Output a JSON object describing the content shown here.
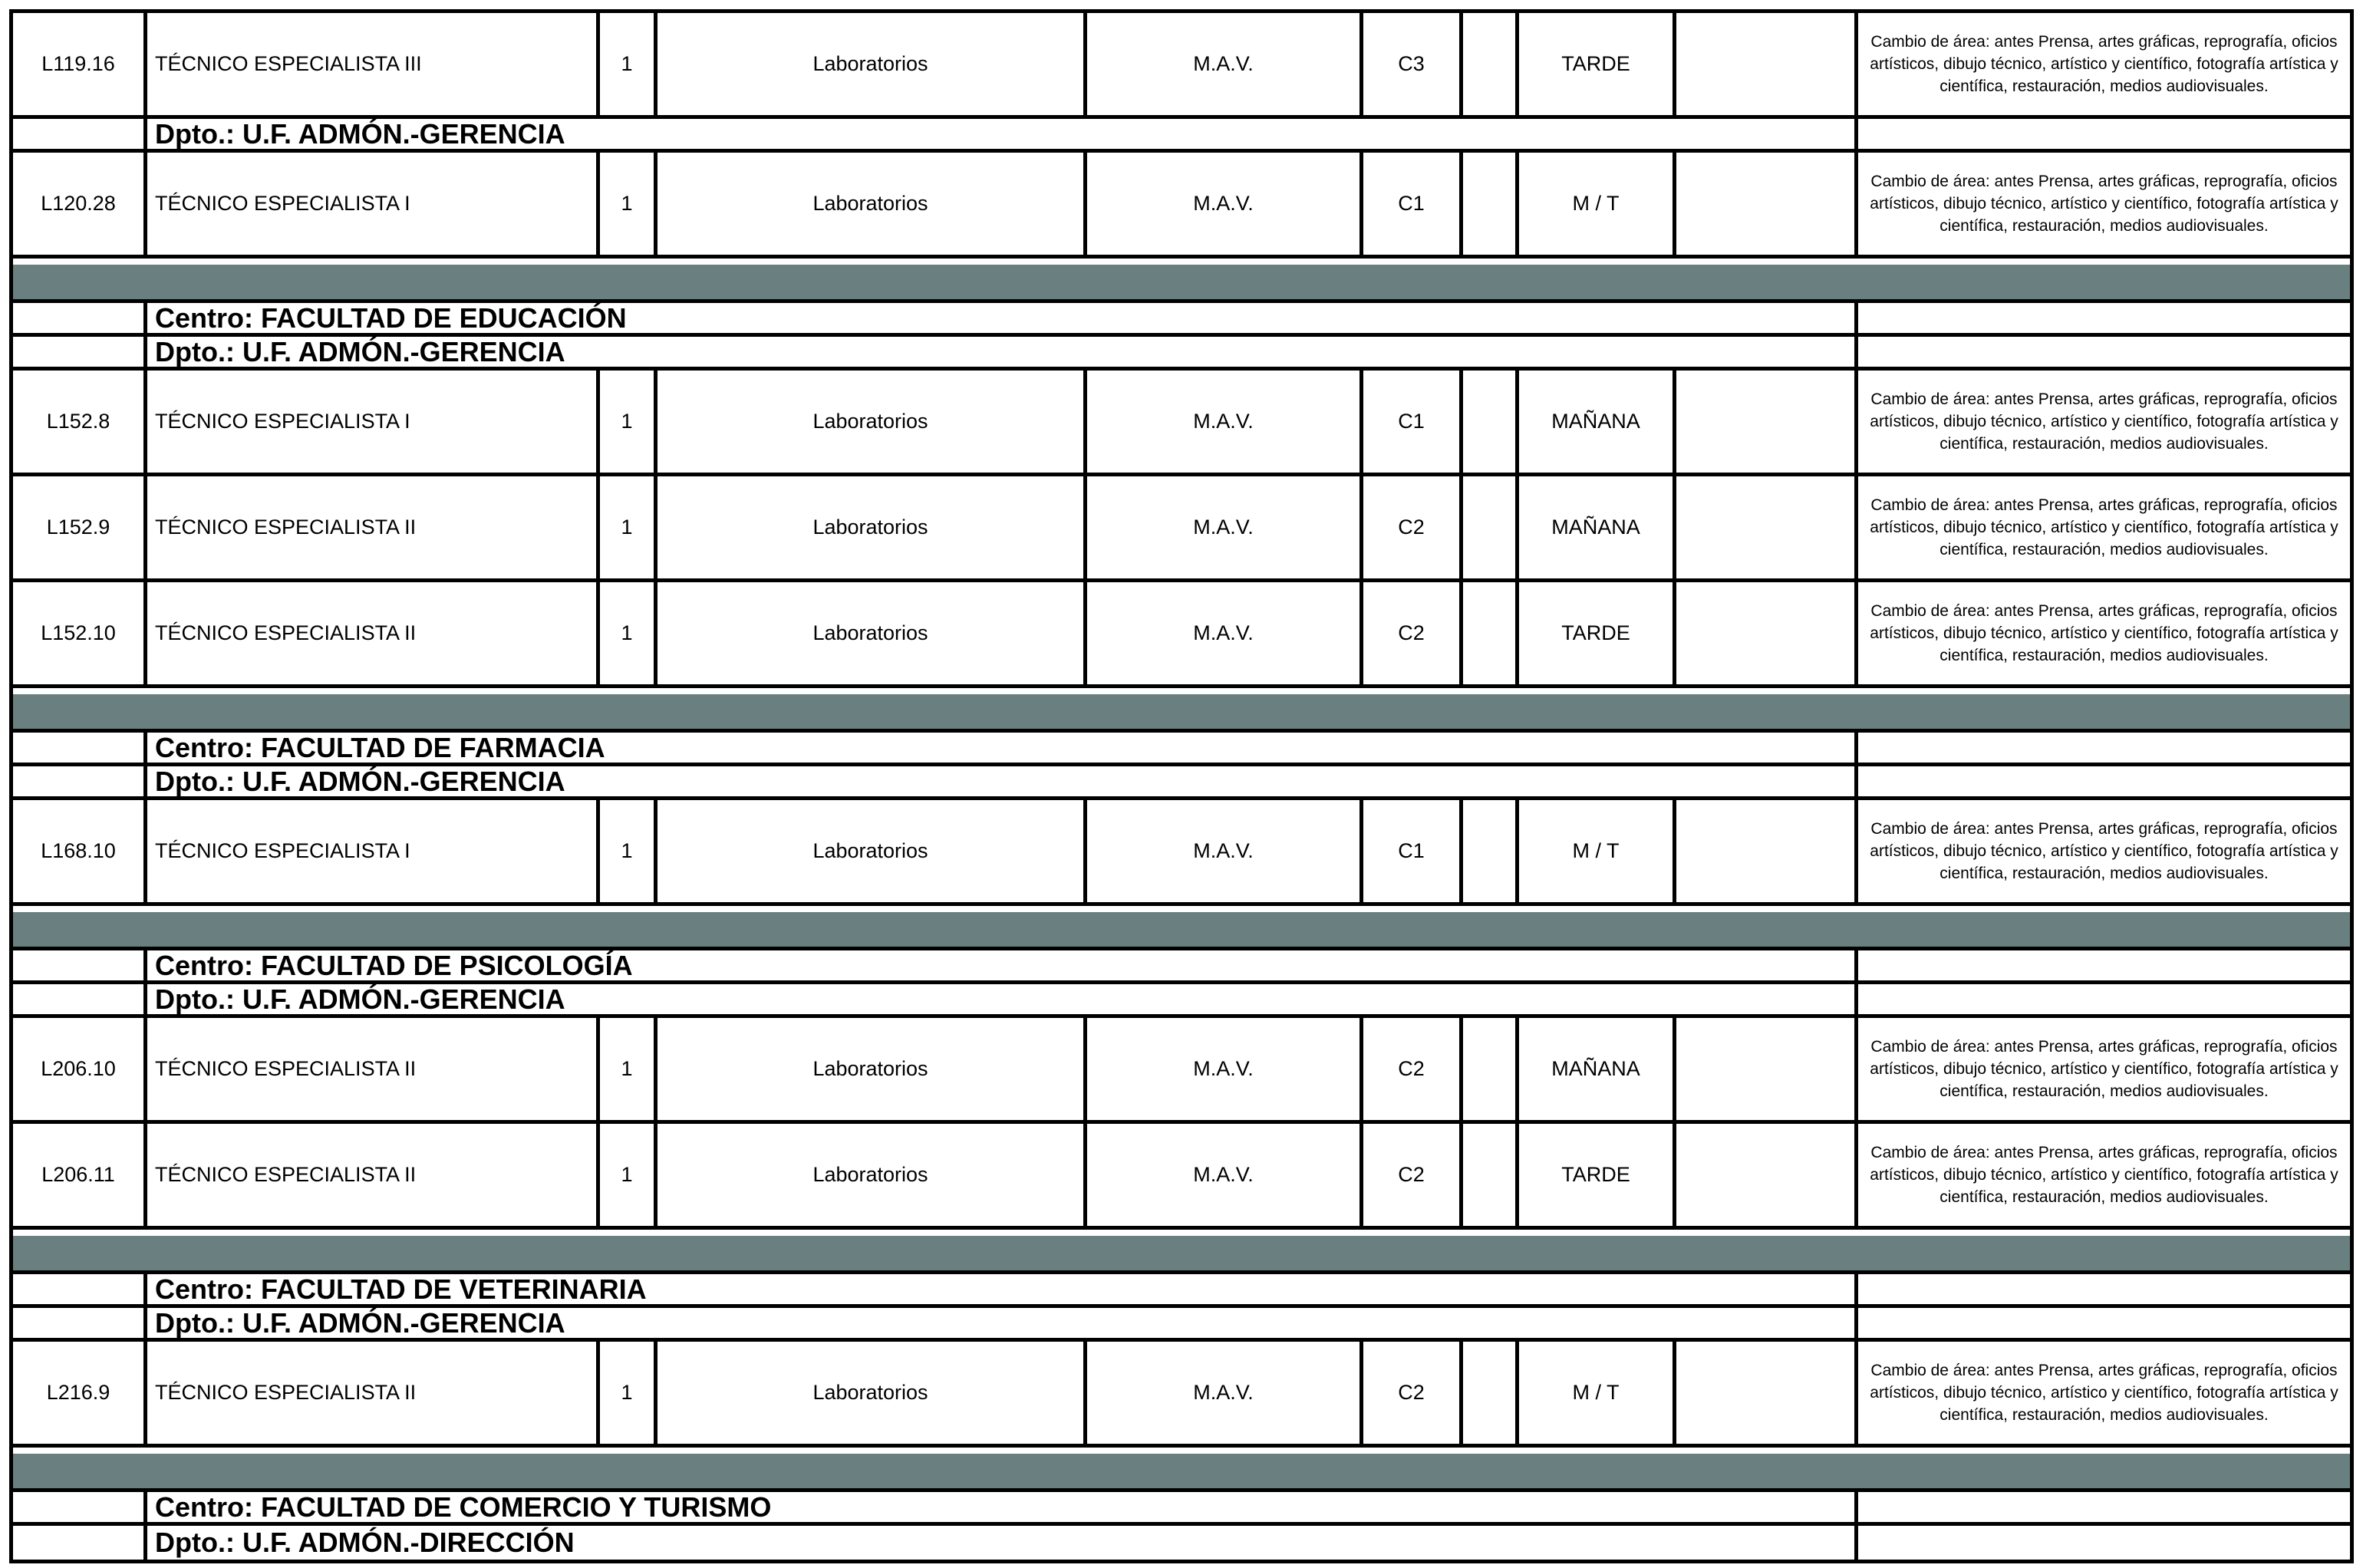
{
  "document": {
    "kind": "staff-positions-table-page",
    "rows": [
      {
        "type": "position",
        "code": "L119.16",
        "title": "TÉCNICO ESPECIALISTA III",
        "count": "1",
        "unit": "Laboratorios",
        "dedication": "M.A.V.",
        "level": "C3",
        "shift": "TARDE",
        "observations": "Cambio de área: antes Prensa, artes gráficas, reprografía, oficios artísticos, dibujo técnico, artístico y científico, fotografía artística y científica, restauración, medios audiovisuales."
      },
      {
        "type": "dpto",
        "label": "Dpto.: U.F. ADMÓN.-GERENCIA"
      },
      {
        "type": "position",
        "code": "L120.28",
        "title": "TÉCNICO ESPECIALISTA I",
        "count": "1",
        "unit": "Laboratorios",
        "dedication": "M.A.V.",
        "level": "C1",
        "shift": "M / T",
        "observations": "Cambio de área: antes Prensa, artes gráficas, reprografía, oficios artísticos, dibujo técnico, artístico y científico, fotografía artística y científica, restauración, medios audiovisuales."
      },
      {
        "type": "separator"
      },
      {
        "type": "centro",
        "label": "Centro: FACULTAD DE EDUCACIÓN"
      },
      {
        "type": "dpto",
        "label": "Dpto.: U.F. ADMÓN.-GERENCIA"
      },
      {
        "type": "position",
        "code": "L152.8",
        "title": "TÉCNICO ESPECIALISTA I",
        "count": "1",
        "unit": "Laboratorios",
        "dedication": "M.A.V.",
        "level": "C1",
        "shift": "MAÑANA",
        "observations": "Cambio de área: antes Prensa, artes gráficas, reprografía, oficios artísticos, dibujo técnico, artístico y científico, fotografía artística y científica, restauración, medios audiovisuales."
      },
      {
        "type": "position",
        "code": "L152.9",
        "title": "TÉCNICO ESPECIALISTA II",
        "count": "1",
        "unit": "Laboratorios",
        "dedication": "M.A.V.",
        "level": "C2",
        "shift": "MAÑANA",
        "observations": "Cambio de área: antes Prensa, artes gráficas, reprografía, oficios artísticos, dibujo técnico, artístico y científico, fotografía artística y científica, restauración, medios audiovisuales."
      },
      {
        "type": "position",
        "code": "L152.10",
        "title": "TÉCNICO ESPECIALISTA II",
        "count": "1",
        "unit": "Laboratorios",
        "dedication": "M.A.V.",
        "level": "C2",
        "shift": "TARDE",
        "observations": "Cambio de área: antes Prensa, artes gráficas, reprografía, oficios artísticos, dibujo técnico, artístico y científico, fotografía artística y científica, restauración, medios audiovisuales."
      },
      {
        "type": "separator"
      },
      {
        "type": "centro",
        "label": "Centro: FACULTAD DE FARMACIA"
      },
      {
        "type": "dpto",
        "label": "Dpto.: U.F. ADMÓN.-GERENCIA"
      },
      {
        "type": "position",
        "code": "L168.10",
        "title": "TÉCNICO ESPECIALISTA I",
        "count": "1",
        "unit": "Laboratorios",
        "dedication": "M.A.V.",
        "level": "C1",
        "shift": "M / T",
        "observations": "Cambio de área: antes Prensa, artes gráficas, reprografía, oficios artísticos, dibujo técnico, artístico y científico, fotografía artística y científica, restauración, medios audiovisuales."
      },
      {
        "type": "separator"
      },
      {
        "type": "centro",
        "label": "Centro: FACULTAD DE PSICOLOGÍA"
      },
      {
        "type": "dpto",
        "label": "Dpto.: U.F. ADMÓN.-GERENCIA"
      },
      {
        "type": "position",
        "code": "L206.10",
        "title": "TÉCNICO ESPECIALISTA II",
        "count": "1",
        "unit": "Laboratorios",
        "dedication": "M.A.V.",
        "level": "C2",
        "shift": "MAÑANA",
        "observations": "Cambio de área: antes Prensa, artes gráficas, reprografía, oficios artísticos, dibujo técnico, artístico y científico, fotografía artística y científica, restauración, medios audiovisuales."
      },
      {
        "type": "position",
        "code": "L206.11",
        "title": "TÉCNICO ESPECIALISTA II",
        "count": "1",
        "unit": "Laboratorios",
        "dedication": "M.A.V.",
        "level": "C2",
        "shift": "TARDE",
        "observations": "Cambio de área: antes Prensa, artes gráficas, reprografía, oficios artísticos, dibujo técnico, artístico y científico, fotografía artística y científica, restauración, medios audiovisuales."
      },
      {
        "type": "separator"
      },
      {
        "type": "centro",
        "label": "Centro: FACULTAD DE VETERINARIA"
      },
      {
        "type": "dpto",
        "label": "Dpto.: U.F. ADMÓN.-GERENCIA"
      },
      {
        "type": "position",
        "code": "L216.9",
        "title": "TÉCNICO ESPECIALISTA II",
        "count": "1",
        "unit": "Laboratorios",
        "dedication": "M.A.V.",
        "level": "C2",
        "shift": "M / T",
        "observations": "Cambio de área: antes Prensa, artes gráficas, reprografía, oficios artísticos, dibujo técnico, artístico y científico, fotografía artística y científica, restauración, medios audiovisuales."
      },
      {
        "type": "separator"
      },
      {
        "type": "centro",
        "label": "Centro: FACULTAD DE COMERCIO Y TURISMO"
      },
      {
        "type": "dpto",
        "label": "Dpto.: U.F. ADMÓN.-DIRECCIÓN"
      }
    ]
  },
  "colors": {
    "separator_bar": "#6A8080",
    "border": "#000000",
    "background": "#FFFFFF",
    "text": "#000000"
  }
}
